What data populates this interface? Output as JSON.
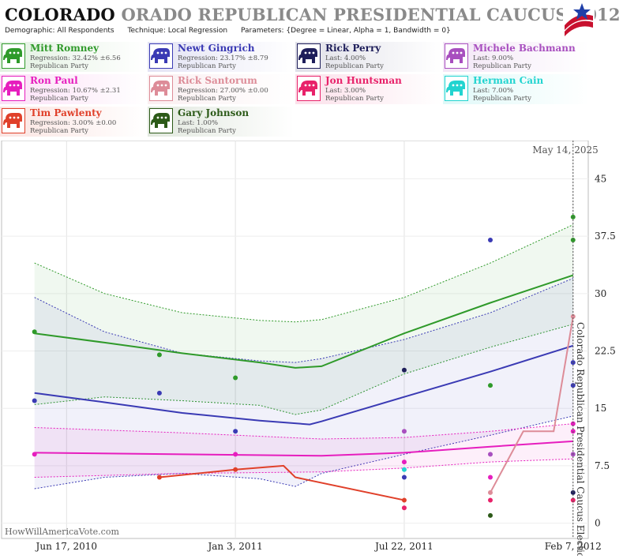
{
  "header": {
    "title_state": "COLORADO",
    "title_race": "ORADO REPUBLICAN PRESIDENTIAL CAUCUS 2012",
    "demographic": "Demographic: All Respondents",
    "technique": "Technique: Local Regression",
    "parameters": "Parameters: {Degree = Linear, Alpha = 1, Bandwidth = 0}"
  },
  "candidates": [
    {
      "name": "Mitt Romney",
      "stat": "Regression: 32.42% ±6.56",
      "party": "Republican Party",
      "color": "#2f9a2a"
    },
    {
      "name": "Newt Gingrich",
      "stat": "Regression: 23.17% ±8.79",
      "party": "Republican Party",
      "color": "#3a3ab4"
    },
    {
      "name": "Rick Perry",
      "stat": "Last: 4.00%",
      "party": "Republican Party",
      "color": "#1e1e5a"
    },
    {
      "name": "Michele Bachmann",
      "stat": "Last: 9.00%",
      "party": "Republican Party",
      "color": "#a84fbf"
    },
    {
      "name": "Ron Paul",
      "stat": "Regression: 10.67% ±2.31",
      "party": "Republican Party",
      "color": "#e61ebe"
    },
    {
      "name": "Rick Santorum",
      "stat": "Regression: 27.00% ±0.00",
      "party": "Republican Party",
      "color": "#dd8c98"
    },
    {
      "name": "Jon Huntsman",
      "stat": "Last: 3.00%",
      "party": "Republican Party",
      "color": "#e8226a"
    },
    {
      "name": "Herman Cain",
      "stat": "Last: 7.00%",
      "party": "Republican Party",
      "color": "#22d4d0"
    },
    {
      "name": "Tim Pawlenty",
      "stat": "Regression: 3.00% ±0.00",
      "party": "Republican Party",
      "color": "#e0402a"
    },
    {
      "name": "Gary Johnson",
      "stat": "Last: 1.00%",
      "party": "Republican Party",
      "color": "#2c5a18"
    }
  ],
  "chart_data": {
    "type": "line",
    "date_label": "May 14, 2025",
    "watermark": "HowWillAmericaVote.com",
    "election_label": "Colorado Republican Presidential Caucus Election",
    "xlim": [
      "2010-04-01",
      "2012-02-25"
    ],
    "ylim": [
      -2,
      50
    ],
    "y_ticks": [
      0,
      7.5,
      15,
      22.5,
      30,
      37.5,
      45
    ],
    "x_ticks": [
      {
        "date": "2010-06-17",
        "label": "Jun 17, 2010"
      },
      {
        "date": "2011-01-03",
        "label": "Jan 3, 2011"
      },
      {
        "date": "2011-07-22",
        "label": "Jul 22, 2011"
      },
      {
        "date": "2012-02-07",
        "label": "Feb 7, 2012"
      }
    ],
    "election_date": "2012-02-07",
    "series": [
      {
        "name": "Mitt Romney",
        "color": "#2f9a2a",
        "line": [
          [
            "2010-05-10",
            24.8
          ],
          [
            "2010-08-01",
            23.6
          ],
          [
            "2010-11-01",
            22.2
          ],
          [
            "2011-02-01",
            21.0
          ],
          [
            "2011-03-15",
            20.3
          ],
          [
            "2011-04-15",
            20.5
          ],
          [
            "2011-07-22",
            24.8
          ],
          [
            "2011-11-01",
            28.8
          ],
          [
            "2012-02-07",
            32.4
          ]
        ],
        "upper": [
          [
            "2010-05-10",
            34.0
          ],
          [
            "2010-08-01",
            30.0
          ],
          [
            "2010-11-01",
            27.5
          ],
          [
            "2011-02-01",
            26.5
          ],
          [
            "2011-03-15",
            26.3
          ],
          [
            "2011-04-15",
            26.6
          ],
          [
            "2011-07-22",
            29.5
          ],
          [
            "2011-11-01",
            34.0
          ],
          [
            "2012-02-07",
            39.0
          ]
        ],
        "lower": [
          [
            "2010-05-10",
            15.5
          ],
          [
            "2010-08-01",
            16.5
          ],
          [
            "2010-11-01",
            16.0
          ],
          [
            "2011-02-01",
            15.4
          ],
          [
            "2011-03-15",
            14.2
          ],
          [
            "2011-04-15",
            14.8
          ],
          [
            "2011-07-22",
            19.5
          ],
          [
            "2011-11-01",
            23.0
          ],
          [
            "2012-02-07",
            26.0
          ]
        ],
        "points": [
          [
            "2010-05-10",
            25
          ],
          [
            "2010-10-05",
            22
          ],
          [
            "2011-01-03",
            19
          ],
          [
            "2011-11-01",
            18
          ],
          [
            "2012-02-07",
            40
          ],
          [
            "2012-02-07",
            37
          ]
        ]
      },
      {
        "name": "Newt Gingrich",
        "color": "#3a3ab4",
        "line": [
          [
            "2010-05-10",
            17.0
          ],
          [
            "2010-08-01",
            15.8
          ],
          [
            "2010-11-01",
            14.4
          ],
          [
            "2011-02-01",
            13.4
          ],
          [
            "2011-04-01",
            12.9
          ],
          [
            "2011-04-15",
            13.3
          ],
          [
            "2011-07-22",
            16.5
          ],
          [
            "2011-11-01",
            19.8
          ],
          [
            "2012-02-07",
            23.2
          ]
        ],
        "upper": [
          [
            "2010-05-10",
            29.5
          ],
          [
            "2010-08-01",
            25.0
          ],
          [
            "2010-11-01",
            22.2
          ],
          [
            "2011-02-01",
            21.2
          ],
          [
            "2011-03-15",
            21.0
          ],
          [
            "2011-04-15",
            21.5
          ],
          [
            "2011-07-22",
            24.0
          ],
          [
            "2011-11-01",
            27.5
          ],
          [
            "2012-02-07",
            32.0
          ]
        ],
        "lower": [
          [
            "2010-05-10",
            4.5
          ],
          [
            "2010-08-01",
            6.0
          ],
          [
            "2010-11-01",
            6.5
          ],
          [
            "2011-02-01",
            5.8
          ],
          [
            "2011-03-15",
            4.8
          ],
          [
            "2011-04-15",
            6.5
          ],
          [
            "2011-07-22",
            9.0
          ],
          [
            "2011-11-01",
            11.5
          ],
          [
            "2012-02-07",
            14.0
          ]
        ],
        "points": [
          [
            "2010-05-10",
            16
          ],
          [
            "2010-10-05",
            17
          ],
          [
            "2011-01-03",
            12
          ],
          [
            "2011-07-22",
            6
          ],
          [
            "2011-11-01",
            37
          ],
          [
            "2012-02-07",
            21
          ],
          [
            "2012-02-07",
            18
          ]
        ]
      },
      {
        "name": "Rick Perry",
        "color": "#1e1e5a",
        "points": [
          [
            "2011-07-22",
            20
          ],
          [
            "2012-02-07",
            4
          ]
        ]
      },
      {
        "name": "Michele Bachmann",
        "color": "#a84fbf",
        "points": [
          [
            "2011-07-22",
            12
          ],
          [
            "2011-11-01",
            9
          ],
          [
            "2012-02-07",
            9
          ]
        ]
      },
      {
        "name": "Ron Paul",
        "color": "#e61ebe",
        "line": [
          [
            "2010-05-10",
            9.2
          ],
          [
            "2010-11-01",
            9.0
          ],
          [
            "2011-04-15",
            8.8
          ],
          [
            "2011-07-22",
            9.2
          ],
          [
            "2011-11-01",
            10.0
          ],
          [
            "2012-02-07",
            10.7
          ]
        ],
        "upper": [
          [
            "2010-05-10",
            12.5
          ],
          [
            "2010-11-01",
            11.8
          ],
          [
            "2011-04-15",
            11.0
          ],
          [
            "2011-07-22",
            11.2
          ],
          [
            "2011-11-01",
            12.0
          ],
          [
            "2012-02-07",
            13.0
          ]
        ],
        "lower": [
          [
            "2010-05-10",
            6.0
          ],
          [
            "2010-11-01",
            6.5
          ],
          [
            "2011-04-15",
            6.7
          ],
          [
            "2011-07-22",
            7.2
          ],
          [
            "2011-11-01",
            8.0
          ],
          [
            "2012-02-07",
            8.4
          ]
        ],
        "points": [
          [
            "2010-05-10",
            9
          ],
          [
            "2011-01-03",
            9
          ],
          [
            "2011-07-22",
            8
          ],
          [
            "2011-11-01",
            6
          ],
          [
            "2012-02-07",
            13
          ],
          [
            "2012-02-07",
            12
          ]
        ]
      },
      {
        "name": "Rick Santorum",
        "color": "#dd8c98",
        "line": [
          [
            "2011-11-01",
            4
          ],
          [
            "2011-12-10",
            12
          ],
          [
            "2012-01-15",
            12
          ],
          [
            "2012-02-07",
            27
          ]
        ],
        "points": [
          [
            "2011-11-01",
            4
          ],
          [
            "2012-02-07",
            27
          ]
        ]
      },
      {
        "name": "Jon Huntsman",
        "color": "#e8226a",
        "points": [
          [
            "2011-07-22",
            2
          ],
          [
            "2011-11-01",
            3
          ],
          [
            "2012-02-07",
            3
          ]
        ]
      },
      {
        "name": "Herman Cain",
        "color": "#22d4d0",
        "points": [
          [
            "2011-07-22",
            7
          ]
        ]
      },
      {
        "name": "Tim Pawlenty",
        "color": "#e0402a",
        "line": [
          [
            "2010-10-05",
            6
          ],
          [
            "2011-01-03",
            7
          ],
          [
            "2011-03-01",
            7.5
          ],
          [
            "2011-03-15",
            6.0
          ],
          [
            "2011-07-22",
            3.0
          ]
        ],
        "points": [
          [
            "2010-10-05",
            6
          ],
          [
            "2011-01-03",
            7
          ],
          [
            "2011-07-22",
            3
          ]
        ]
      },
      {
        "name": "Gary Johnson",
        "color": "#2c5a18",
        "points": [
          [
            "2011-11-01",
            1
          ]
        ]
      }
    ]
  }
}
